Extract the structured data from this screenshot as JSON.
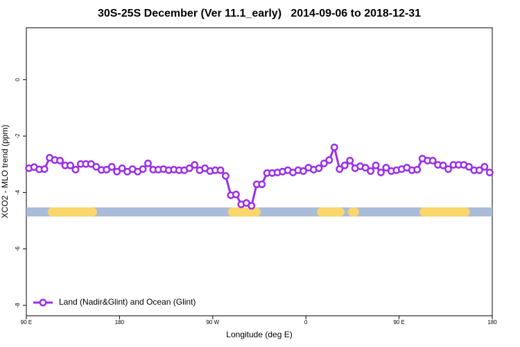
{
  "chart_data": {
    "type": "line",
    "title": "30S-25S December (Ver 11.1_early)   2014-09-06 to 2018-12-31",
    "x_label": "Longitude (deg E)",
    "y_label": "XCO2 - MLO trend (ppm)",
    "x": [
      92.5,
      97.5,
      102.5,
      107.5,
      112.5,
      117.5,
      122.5,
      127.5,
      132.5,
      137.5,
      142.5,
      147.5,
      152.5,
      157.5,
      162.5,
      167.5,
      172.5,
      177.5,
      182.5,
      187.5,
      192.5,
      197.5,
      202.5,
      207.5,
      212.5,
      217.5,
      222.5,
      227.5,
      232.5,
      237.5,
      242.5,
      247.5,
      252.5,
      257.5,
      262.5,
      267.5,
      272.5,
      277.5,
      282.5,
      287.5,
      292.5,
      297.5,
      302.5,
      307.5,
      312.5,
      317.5,
      322.5,
      327.5,
      332.5,
      337.5,
      342.5,
      347.5,
      352.5,
      357.5,
      362.5,
      367.5,
      372.5,
      377.5,
      382.5,
      387.5,
      392.5,
      397.5,
      402.5,
      407.5,
      412.5,
      417.5,
      422.5,
      427.5,
      432.5,
      437.5,
      442.5,
      447.5,
      452.5,
      457.5,
      462.5,
      467.5,
      472.5,
      477.5,
      482.5,
      487.5,
      492.5,
      497.5,
      502.5,
      507.5,
      512.5,
      517.5,
      522.5,
      527.5,
      532.5,
      537.5
    ],
    "series": [
      {
        "name": "Land (Nadir&Glint) and Ocean (Glint)",
        "color": "#9b30e8",
        "values": [
          -3.14,
          -3.1,
          -3.18,
          -3.17,
          -2.77,
          -2.85,
          -2.87,
          -3.04,
          -3.04,
          -3.19,
          -2.99,
          -2.99,
          -2.99,
          -3.09,
          -3.2,
          -3.19,
          -3.09,
          -3.26,
          -3.14,
          -3.26,
          -3.17,
          -3.26,
          -3.17,
          -2.97,
          -3.19,
          -3.19,
          -3.17,
          -3.21,
          -3.19,
          -3.21,
          -3.21,
          -3.14,
          -3.02,
          -3.21,
          -3.14,
          -3.24,
          -3.21,
          -3.21,
          -3.41,
          -4.1,
          -4.07,
          -4.42,
          -4.37,
          -4.47,
          -3.71,
          -3.71,
          -3.31,
          -3.31,
          -3.29,
          -3.26,
          -3.21,
          -3.29,
          -3.21,
          -3.24,
          -3.12,
          -3.19,
          -3.14,
          -2.97,
          -2.85,
          -2.4,
          -3.17,
          -3.04,
          -2.87,
          -3.14,
          -3.07,
          -3.12,
          -3.24,
          -3.04,
          -3.29,
          -3.12,
          -3.24,
          -3.21,
          -3.17,
          -3.12,
          -3.21,
          -3.19,
          -2.8,
          -2.87,
          -2.87,
          -3.02,
          -3.04,
          -3.17,
          -3.02,
          -3.02,
          -3.02,
          -3.09,
          -3.21,
          -3.21,
          -3.09,
          -3.29
        ]
      }
    ],
    "xlim": [
      90,
      540
    ],
    "xticks": [
      {
        "value": 90,
        "label": "90 E"
      },
      180,
      {
        "value": 270,
        "label": "90 W"
      },
      {
        "value": 360,
        "label": "0"
      },
      {
        "value": 450,
        "label": "90 E"
      },
      {
        "value": 540,
        "label": "180"
      }
    ],
    "ylim": [
      -8.37,
      1.84
    ],
    "yticks": [
      -8,
      -6,
      -4,
      -2,
      0
    ],
    "surface_band": {
      "value": -4.69,
      "ocean_color": "#a9bcd9",
      "land_color": "#fbd66a",
      "land_segments": [
        [
          115,
          154
        ],
        [
          289,
          312
        ],
        [
          375,
          393
        ],
        [
          405,
          407
        ],
        [
          474,
          514
        ]
      ]
    },
    "legend": "bottom-left"
  }
}
